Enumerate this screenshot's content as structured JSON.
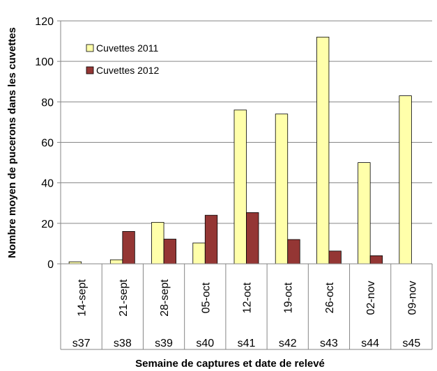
{
  "chart_data": {
    "type": "bar",
    "title": "",
    "ylabel": "Nombre moyen de pucerons dans les cuvettes",
    "xlabel": "Semaine de captures et date de relevé",
    "ylim": [
      0,
      120
    ],
    "yticks": [
      0,
      20,
      40,
      60,
      80,
      100,
      120
    ],
    "grid": true,
    "legend_position": "top-left",
    "dates": [
      "14-sept",
      "21-sept",
      "28-sept",
      "05-oct",
      "12-oct",
      "19-oct",
      "26-oct",
      "02-nov",
      "09-nov"
    ],
    "weeks": [
      "s37",
      "s38",
      "s39",
      "s40",
      "s41",
      "s42",
      "s43",
      "s44",
      "s45"
    ],
    "series": [
      {
        "name": "Cuvettes 2011",
        "color": "#FFFFAA",
        "values": [
          1,
          2,
          20.5,
          10.3,
          76,
          74,
          112,
          50,
          83
        ]
      },
      {
        "name": "Cuvettes 2012",
        "color": "#943634",
        "values": [
          null,
          16,
          12.2,
          24,
          25.3,
          12,
          6.3,
          4,
          null
        ]
      }
    ]
  }
}
